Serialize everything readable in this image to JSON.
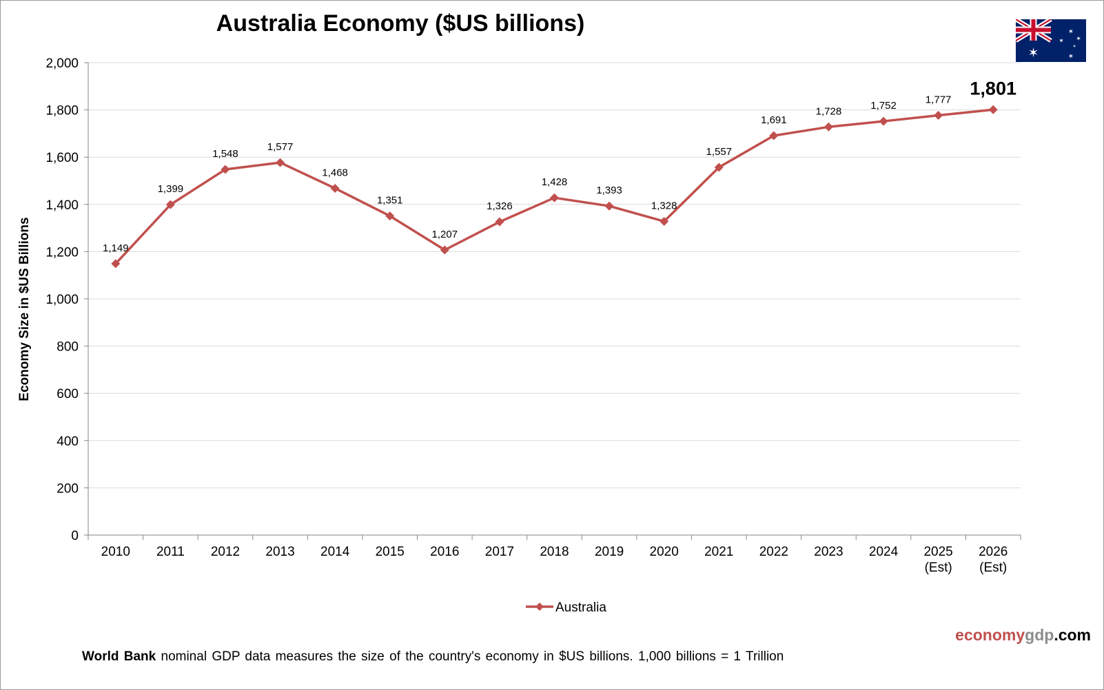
{
  "colors": {
    "series": "#c0504d",
    "grid": "#d9d9d9",
    "axis": "#868686"
  },
  "flag_icon": "australia-flag-icon",
  "brand": {
    "part1": "economy",
    "part2": "gdp",
    "part3": ".com"
  },
  "footnote": {
    "bold": "World Bank",
    "text": " nominal GDP data  measures the size of the country's economy in $US billions. 1,000 billions = 1 Trillion"
  },
  "chart_data": {
    "type": "line",
    "title": "Australia  Economy ($US billions)",
    "xlabel": "",
    "ylabel": "Economy Size in $US Billions",
    "ylim": [
      0,
      2000
    ],
    "yticks": [
      0,
      200,
      400,
      600,
      800,
      1000,
      1200,
      1400,
      1600,
      1800,
      2000
    ],
    "ytick_labels": [
      "0",
      "200",
      "400",
      "600",
      "800",
      "1,000",
      "1,200",
      "1,400",
      "1,600",
      "1,800",
      "2,000"
    ],
    "grid": true,
    "legend": "bottom-center",
    "categories": [
      [
        "2010"
      ],
      [
        "2011"
      ],
      [
        "2012"
      ],
      [
        "2013"
      ],
      [
        "2014"
      ],
      [
        "2015"
      ],
      [
        "2016"
      ],
      [
        "2017"
      ],
      [
        "2018"
      ],
      [
        "2019"
      ],
      [
        "2020"
      ],
      [
        "2021"
      ],
      [
        "2022"
      ],
      [
        "2023"
      ],
      [
        "2024"
      ],
      [
        "2025",
        "(Est)"
      ],
      [
        "2026",
        "(Est)"
      ]
    ],
    "series": [
      {
        "name": "Australia",
        "values": [
          1149,
          1399,
          1548,
          1577,
          1468,
          1351,
          1207,
          1326,
          1428,
          1393,
          1328,
          1557,
          1691,
          1728,
          1752,
          1777,
          1801
        ],
        "labels": [
          "1,149",
          "1,399",
          "1,548",
          "1,577",
          "1,468",
          "1,351",
          "1,207",
          "1,326",
          "1,428",
          "1,393",
          "1,328",
          "1,557",
          "1,691",
          "1,728",
          "1,752",
          "1,777",
          "1,801"
        ]
      }
    ]
  }
}
